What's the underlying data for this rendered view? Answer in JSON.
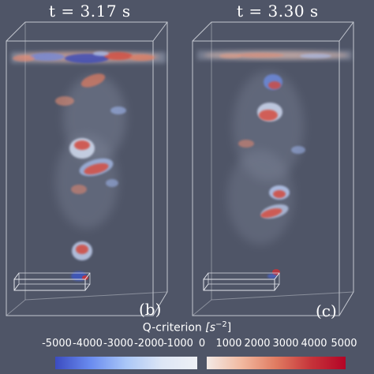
{
  "panels": [
    {
      "time_label": "t = 3.17 s",
      "panel_label": "(b)"
    },
    {
      "time_label": "t = 3.30 s",
      "panel_label": "(c)"
    }
  ],
  "colorbar": {
    "title_prefix": "Q-criterion ",
    "title_unit": "[s",
    "title_exp": "−2",
    "title_close": "]",
    "ticks": [
      "-5000",
      "-4000",
      "-3000",
      "-2000",
      "-1000",
      "0",
      "1000",
      "2000",
      "3000",
      "4000",
      "5000"
    ],
    "colors": {
      "negative_end": "#3b4cc0",
      "positive_end": "#b40426",
      "neutral": "#eef0f5"
    }
  },
  "background_color": "#4f5567"
}
